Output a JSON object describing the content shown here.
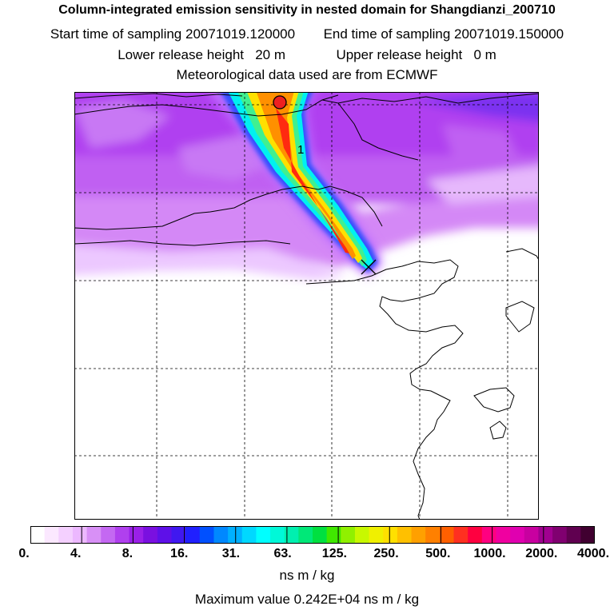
{
  "header": {
    "title": "Column-integrated emission sensitivity in nested domain for Shangdianzi_200710",
    "start_label": "Start time of sampling",
    "start_value": "20071019.120000",
    "end_label": "End time of sampling",
    "end_value": "20071019.150000",
    "lower_label": "Lower release height",
    "lower_value": "20 m",
    "upper_label": "Upper release height",
    "upper_value": "0 m",
    "met_text": "Meteorological data used are from ECMWF"
  },
  "map": {
    "plume_label": "1",
    "colors": {
      "plume_outer": "#00f0f0",
      "plume_mid": "#ffe000",
      "plume_core": "#ff2a10",
      "background_field": "#b040f0",
      "field_light": "#e8b8ff"
    }
  },
  "colorbar": {
    "ticks": [
      "0.",
      "4.",
      "8.",
      "16.",
      "31.",
      "63.",
      "125.",
      "250.",
      "500.",
      "1000.",
      "2000.",
      "4000."
    ],
    "units": "ns m / kg",
    "max_text": "Maximum value  0.242E+04 ns m / kg"
  }
}
